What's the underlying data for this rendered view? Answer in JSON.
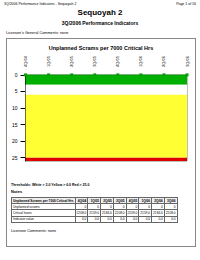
{
  "header": {
    "left": "3Q/2006 Performance Indicators - Sequoyah 2",
    "right": "Page 1 of 16"
  },
  "title": "Sequoyah 2",
  "subtitle": "3Q/2006 Performance Indicators",
  "general_comments": "Licensee's General Comments: none",
  "chart_data": {
    "type": "line",
    "title": "Unplanned Scrams per 7000 Critical Hrs",
    "categories": [
      "4Q/04",
      "1Q/05",
      "2Q/05",
      "3Q/05",
      "4Q/05",
      "1Q/06",
      "2Q/06",
      "3Q/06"
    ],
    "values": [
      0,
      0,
      0,
      0,
      0,
      0,
      0,
      0
    ],
    "color": "#00a000",
    "marker": "square",
    "ylim": [
      0,
      26
    ],
    "yticks": [
      0,
      5,
      10,
      15,
      20,
      25
    ],
    "bands": [
      {
        "from": 0,
        "to": 3,
        "color": "#00b000"
      },
      {
        "from": 3,
        "to": 6,
        "color": "#ffffff"
      },
      {
        "from": 6,
        "to": 25,
        "color": "#ffff33"
      },
      {
        "from": 25,
        "to": 26,
        "color": "#e00000"
      }
    ]
  },
  "thresholds": "Thresholds: White > 3.0  Yellow > 6.0  Red > 25.0",
  "notes": "Notes",
  "table": {
    "header": [
      "Unplanned Scrams per 7000 Critical Hrs",
      "4Q/04",
      "1Q/05",
      "2Q/05",
      "3Q/05",
      "4Q/05",
      "1Q/06",
      "2Q/06",
      "3Q/06"
    ],
    "rows": [
      [
        "Unplanned scrams",
        "0",
        "0",
        "0",
        "0",
        "0",
        "0",
        "0",
        "0"
      ],
      [
        "Critical hours",
        "2208.0",
        "2159.0",
        "2184.0",
        "2208.0",
        "2209.0",
        "2159.0",
        "2184.0",
        "2208.0"
      ],
      [
        "Indicator value",
        "0.0",
        "0.0",
        "0.0",
        "0.0",
        "0.0",
        "0.0",
        "0.0",
        "0.0"
      ]
    ]
  },
  "licensee_comments": "Licensee Comments: none"
}
